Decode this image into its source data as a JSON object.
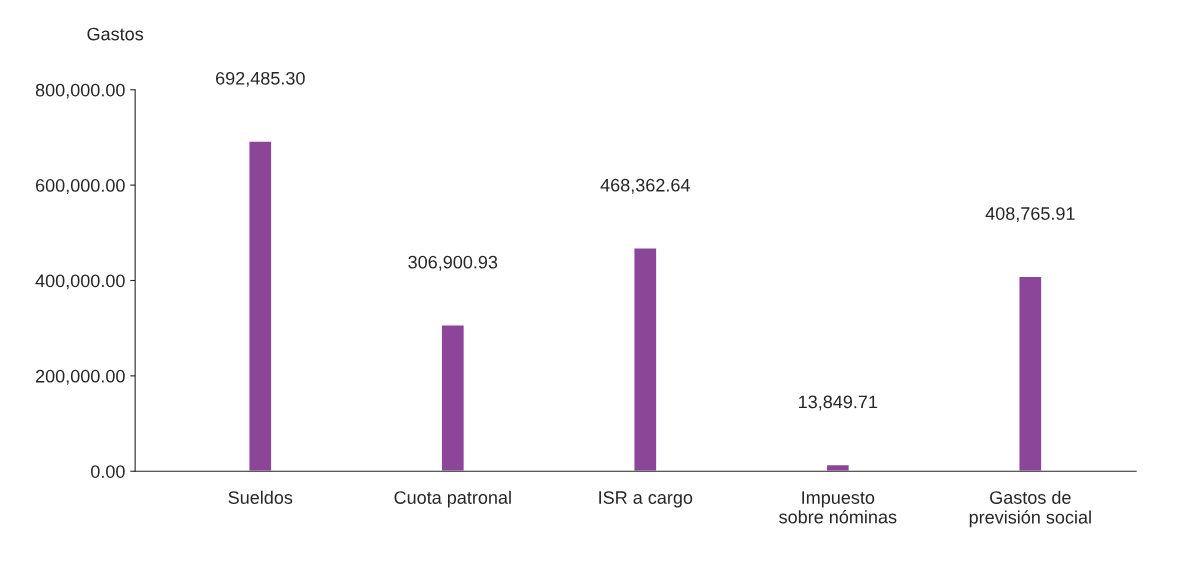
{
  "chart_data": {
    "type": "bar",
    "ylabel": "Gastos",
    "categories": [
      "Sueldos",
      "Cuota patronal",
      "ISR a cargo",
      "Impuesto\nsobre nóminas",
      "Gastos de\nprevisión social"
    ],
    "values": [
      692485.3,
      306900.93,
      468362.64,
      13849.71,
      408765.91
    ],
    "value_labels": [
      "692,485.30",
      "306,900.93",
      "468,362.64",
      "13,849.71",
      "408,765.91"
    ],
    "color": "#8b4599",
    "ylim": [
      0,
      800000
    ],
    "yticks": [
      {
        "value": 0,
        "label": "0.00"
      },
      {
        "value": 200000,
        "label": "200,000.00"
      },
      {
        "value": 400000,
        "label": "400,000.00"
      },
      {
        "value": 600000,
        "label": "600,000.00"
      },
      {
        "value": 800000,
        "label": "800,000.00"
      }
    ],
    "grid": false,
    "legend": false
  }
}
